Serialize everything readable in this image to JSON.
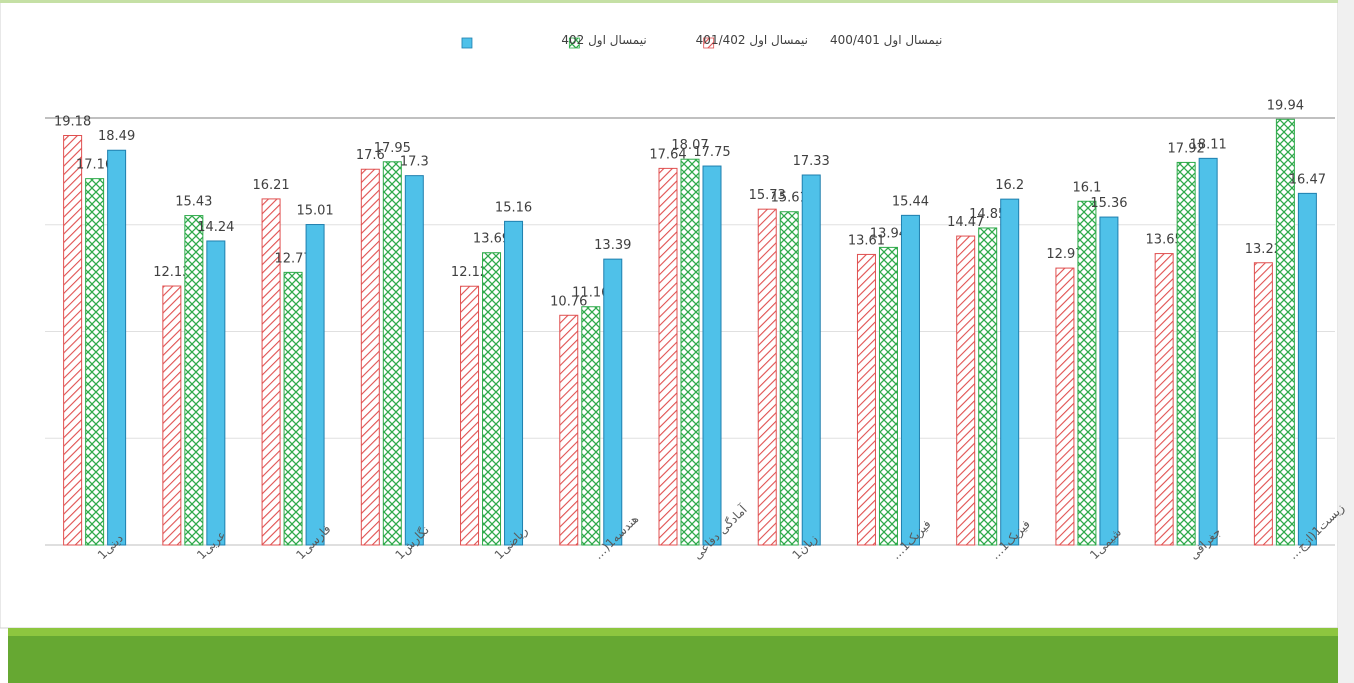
{
  "chart_data": {
    "type": "bar",
    "categories": [
      "دینی1",
      "عربی1",
      "فارسی1",
      "نگارش1",
      "ریاضی1",
      "هندسه1(…",
      "آمادگی دفاعی",
      "زبان1",
      "فیزیک1…",
      "فیزیک1…",
      "شیمی1",
      "جغرافی",
      "زیست1(ازج…"
    ],
    "series": [
      {
        "name": "نیمسال اول 400/401",
        "color": "#e05050",
        "values": [
          19.18,
          12.13,
          16.21,
          17.6,
          12.12,
          10.76,
          17.64,
          15.73,
          13.61,
          14.47,
          12.97,
          13.65,
          13.22
        ]
      },
      {
        "name": "نیمسال اول 401/402",
        "color": "#2eaa4a",
        "values": [
          17.16,
          15.43,
          12.77,
          17.95,
          13.69,
          11.16,
          18.07,
          15.61,
          13.94,
          14.85,
          16.1,
          17.92,
          19.94
        ]
      },
      {
        "name": "نیمسال اول 402",
        "color": "#4fc1e9",
        "values": [
          18.49,
          14.24,
          15.01,
          17.3,
          15.16,
          13.39,
          17.75,
          17.33,
          15.44,
          16.2,
          15.36,
          18.11,
          16.47
        ]
      }
    ],
    "ylim": [
      0,
      20
    ],
    "yticks": [
      0,
      5,
      10,
      15,
      20
    ],
    "grid": true,
    "legend": "top"
  }
}
